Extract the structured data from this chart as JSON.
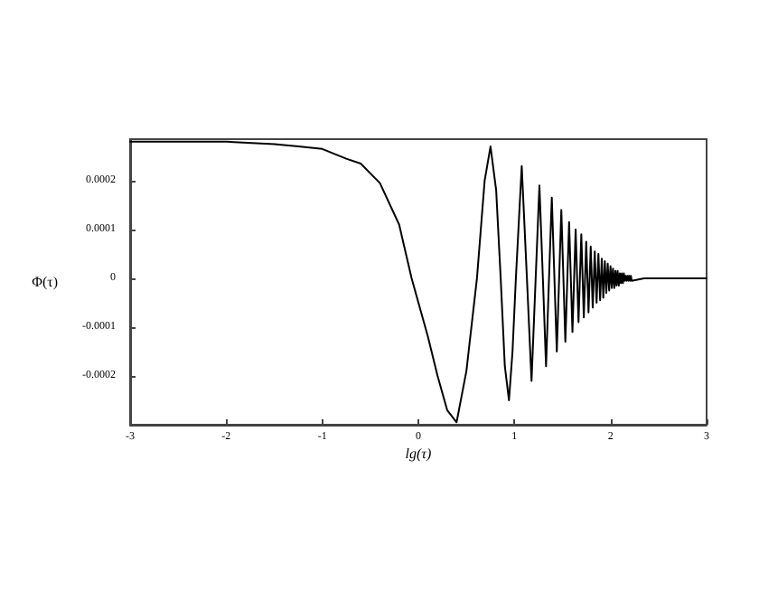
{
  "chart_data": {
    "type": "line",
    "xlabel": "lg(τ)",
    "ylabel": "Φ(τ)",
    "xlim": [
      -3,
      3
    ],
    "xticks": [
      -3,
      -2,
      -1,
      0,
      1,
      2,
      3
    ],
    "ylim": [
      -0.0003,
      0.000285
    ],
    "yticks": [
      -0.0002,
      -0.0001,
      0,
      0.0001,
      0.0002
    ],
    "marker": "none",
    "line_style": "solid",
    "series": [
      {
        "color": "#000000",
        "x": [
          -3,
          -2.5,
          -2,
          -1.5,
          -1.25,
          -1,
          -0.75,
          -0.6,
          -0.4,
          -0.2,
          -0.07,
          0.1,
          0.2,
          0.3,
          0.398,
          0.5,
          0.61,
          0.69,
          0.751,
          0.81,
          0.857,
          0.9,
          0.943,
          0.98,
          1.015,
          1.076,
          1.13,
          1.178,
          1.221,
          1.26,
          1.296,
          1.329,
          1.36,
          1.389,
          1.441,
          1.488,
          1.53,
          1.569,
          1.604,
          1.637,
          1.667,
          1.696,
          1.722,
          1.747,
          1.771,
          1.794,
          1.815,
          1.836,
          1.855,
          1.874,
          1.892,
          1.909,
          1.925,
          1.941,
          1.956,
          1.971,
          1.986,
          2.0,
          2.013,
          2.026,
          2.039,
          2.051,
          2.063,
          2.074,
          2.086,
          2.097,
          2.108,
          2.118,
          2.129,
          2.139,
          2.148,
          2.158,
          2.167,
          2.177,
          2.186,
          2.194,
          2.203,
          2.212,
          2.22,
          2.35,
          3
        ],
        "values": [
          0.00028,
          0.00028,
          0.00028,
          0.000275,
          0.00027,
          0.000265,
          0.000245,
          0.000235,
          0.000195,
          0.00011,
          0,
          -0.00012,
          -0.0002,
          -0.00027,
          -0.000295,
          -0.00019,
          0,
          0.0002,
          0.00027,
          0.00018,
          0,
          -0.00018,
          -0.00025,
          -0.00015,
          0,
          0.00023,
          0,
          -0.00021,
          0,
          0.00019,
          0,
          -0.00018,
          0,
          0.000165,
          -0.00015,
          0.00014,
          -0.00013,
          0.000115,
          -0.00011,
          0.0001,
          -9e-05,
          9e-05,
          -8e-05,
          7.5e-05,
          -7e-05,
          6.5e-05,
          -6e-05,
          5.5e-05,
          -5e-05,
          5e-05,
          -4.5e-05,
          4e-05,
          -4e-05,
          3.5e-05,
          -3e-05,
          3e-05,
          -2.5e-05,
          2.5e-05,
          -2e-05,
          2e-05,
          -2e-05,
          1.5e-05,
          -1.5e-05,
          1.5e-05,
          -1.5e-05,
          1e-05,
          -1e-05,
          1e-05,
          -1e-05,
          1e-05,
          -5e-06,
          5e-06,
          -5e-06,
          5e-06,
          -5e-06,
          5e-06,
          -5e-06,
          5e-06,
          -5e-06,
          0,
          0
        ]
      }
    ]
  }
}
